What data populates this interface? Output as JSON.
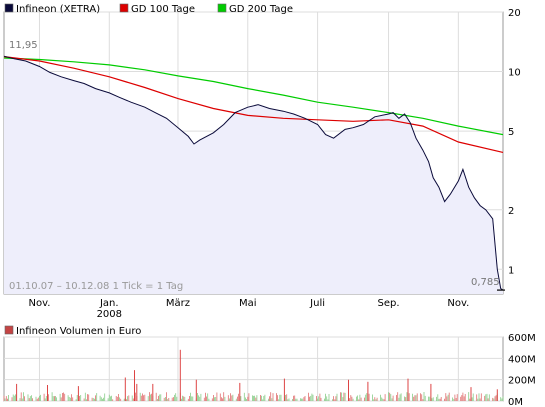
{
  "chart_data": [
    {
      "type": "line",
      "title": "",
      "yscale": "log",
      "ylim": [
        0.75,
        20
      ],
      "ylabel": "",
      "xlabel": "",
      "x_range": [
        "2007-10-01",
        "2008-12-10"
      ],
      "y_ticks": [
        20,
        10,
        5,
        2,
        1
      ],
      "y_tick_labels": [
        "20",
        "10",
        "5",
        "2",
        "1"
      ],
      "x_ticks": [
        {
          "x": "2007-11-01",
          "label": "Nov.",
          "sublabel": ""
        },
        {
          "x": "2008-01-01",
          "label": "Jan.",
          "sublabel": "2008"
        },
        {
          "x": "2008-03-01",
          "label": "März",
          "sublabel": ""
        },
        {
          "x": "2008-05-01",
          "label": "Mai",
          "sublabel": ""
        },
        {
          "x": "2008-07-01",
          "label": "Juli",
          "sublabel": ""
        },
        {
          "x": "2008-09-01",
          "label": "Sep.",
          "sublabel": ""
        },
        {
          "x": "2008-11-01",
          "label": "Nov.",
          "sublabel": ""
        }
      ],
      "legend_position": "top-left",
      "annotations": {
        "start_value": "11,95",
        "end_value": "0,785",
        "range_info": "01.10.07 – 10.12.08   1 Tick = 1 Tag"
      },
      "series": [
        {
          "name": "Infineon (XETRA)",
          "color": "#0a0a3a",
          "fill": "#eeeefb",
          "points": [
            [
              "2007-10-01",
              11.95
            ],
            [
              "2007-10-10",
              11.6
            ],
            [
              "2007-10-20",
              11.3
            ],
            [
              "2007-11-01",
              10.6
            ],
            [
              "2007-11-10",
              9.9
            ],
            [
              "2007-11-20",
              9.4
            ],
            [
              "2007-12-01",
              9.0
            ],
            [
              "2007-12-10",
              8.7
            ],
            [
              "2007-12-20",
              8.2
            ],
            [
              "2008-01-01",
              7.8
            ],
            [
              "2008-01-10",
              7.4
            ],
            [
              "2008-01-20",
              7.0
            ],
            [
              "2008-02-01",
              6.6
            ],
            [
              "2008-02-10",
              6.2
            ],
            [
              "2008-02-20",
              5.8
            ],
            [
              "2008-03-01",
              5.2
            ],
            [
              "2008-03-10",
              4.7
            ],
            [
              "2008-03-15",
              4.3
            ],
            [
              "2008-03-20",
              4.5
            ],
            [
              "2008-04-01",
              4.9
            ],
            [
              "2008-04-10",
              5.4
            ],
            [
              "2008-04-20",
              6.2
            ],
            [
              "2008-05-01",
              6.6
            ],
            [
              "2008-05-10",
              6.8
            ],
            [
              "2008-05-20",
              6.5
            ],
            [
              "2008-06-01",
              6.3
            ],
            [
              "2008-06-10",
              6.1
            ],
            [
              "2008-06-20",
              5.8
            ],
            [
              "2008-07-01",
              5.4
            ],
            [
              "2008-07-08",
              4.8
            ],
            [
              "2008-07-15",
              4.6
            ],
            [
              "2008-07-25",
              5.1
            ],
            [
              "2008-08-01",
              5.2
            ],
            [
              "2008-08-10",
              5.4
            ],
            [
              "2008-08-20",
              5.9
            ],
            [
              "2008-09-01",
              6.1
            ],
            [
              "2008-09-05",
              6.2
            ],
            [
              "2008-09-10",
              5.8
            ],
            [
              "2008-09-15",
              6.1
            ],
            [
              "2008-09-20",
              5.5
            ],
            [
              "2008-09-25",
              4.6
            ],
            [
              "2008-10-01",
              4.0
            ],
            [
              "2008-10-06",
              3.5
            ],
            [
              "2008-10-10",
              2.9
            ],
            [
              "2008-10-15",
              2.6
            ],
            [
              "2008-10-20",
              2.2
            ],
            [
              "2008-10-25",
              2.4
            ],
            [
              "2008-11-01",
              2.8
            ],
            [
              "2008-11-05",
              3.2
            ],
            [
              "2008-11-10",
              2.6
            ],
            [
              "2008-11-15",
              2.3
            ],
            [
              "2008-11-20",
              2.1
            ],
            [
              "2008-11-25",
              2.0
            ],
            [
              "2008-12-01",
              1.8
            ],
            [
              "2008-12-05",
              1.0
            ],
            [
              "2008-12-08",
              0.8
            ],
            [
              "2008-12-10",
              0.785
            ]
          ]
        },
        {
          "name": "GD 100 Tage",
          "color": "#dd0000",
          "points": [
            [
              "2007-10-01",
              11.9
            ],
            [
              "2007-11-01",
              11.3
            ],
            [
              "2007-12-01",
              10.4
            ],
            [
              "2008-01-01",
              9.4
            ],
            [
              "2008-02-01",
              8.3
            ],
            [
              "2008-03-01",
              7.3
            ],
            [
              "2008-04-01",
              6.5
            ],
            [
              "2008-05-01",
              6.0
            ],
            [
              "2008-06-01",
              5.8
            ],
            [
              "2008-07-01",
              5.7
            ],
            [
              "2008-08-01",
              5.6
            ],
            [
              "2008-09-01",
              5.7
            ],
            [
              "2008-10-01",
              5.3
            ],
            [
              "2008-11-01",
              4.4
            ],
            [
              "2008-12-10",
              3.9
            ]
          ]
        },
        {
          "name": "GD 200 Tage",
          "color": "#00cc00",
          "points": [
            [
              "2007-10-01",
              11.7
            ],
            [
              "2007-11-01",
              11.5
            ],
            [
              "2007-12-01",
              11.2
            ],
            [
              "2008-01-01",
              10.8
            ],
            [
              "2008-02-01",
              10.2
            ],
            [
              "2008-03-01",
              9.5
            ],
            [
              "2008-04-01",
              8.9
            ],
            [
              "2008-05-01",
              8.2
            ],
            [
              "2008-06-01",
              7.6
            ],
            [
              "2008-07-01",
              7.0
            ],
            [
              "2008-08-01",
              6.6
            ],
            [
              "2008-09-01",
              6.2
            ],
            [
              "2008-10-01",
              5.8
            ],
            [
              "2008-11-01",
              5.3
            ],
            [
              "2008-12-10",
              4.8
            ]
          ]
        }
      ]
    },
    {
      "type": "bar",
      "title": "",
      "legend": "Infineon Volumen in Euro",
      "legend_color": "#c44444",
      "ylim": [
        0,
        600
      ],
      "y_ticks": [
        600,
        400,
        200,
        0
      ],
      "y_tick_labels": [
        "600M",
        "400M",
        "200M",
        "0M"
      ],
      "x_range": [
        "2007-10-01",
        "2008-12-10"
      ],
      "color_up": "#e07070",
      "color_down": "#88cc88",
      "spikes": [
        [
          "2007-10-12",
          160
        ],
        [
          "2007-11-08",
          150
        ],
        [
          "2007-12-05",
          140
        ],
        [
          "2008-01-15",
          220
        ],
        [
          "2008-01-23",
          290
        ],
        [
          "2008-01-25",
          160
        ],
        [
          "2008-02-08",
          160
        ],
        [
          "2008-03-03",
          480
        ],
        [
          "2008-03-17",
          200
        ],
        [
          "2008-04-24",
          170
        ],
        [
          "2008-06-02",
          210
        ],
        [
          "2008-07-28",
          200
        ],
        [
          "2008-08-14",
          180
        ],
        [
          "2008-09-18",
          210
        ],
        [
          "2008-10-08",
          160
        ],
        [
          "2008-11-12",
          130
        ],
        [
          "2008-12-05",
          110
        ]
      ]
    }
  ]
}
